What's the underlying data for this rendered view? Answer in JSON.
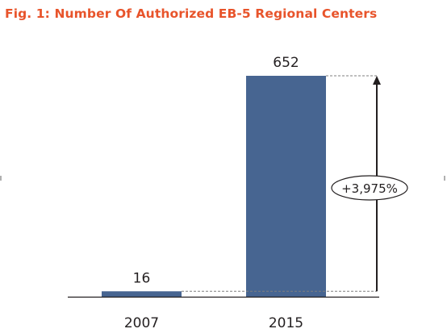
{
  "colors": {
    "title": "#E8542B",
    "bar": "#476591",
    "text": "#231F20",
    "axis": "#231F20",
    "guide": "#7F7F7F"
  },
  "chart_data": {
    "type": "bar",
    "title": "Fig. 1: Number Of Authorized EB-5 Regional Centers",
    "categories": [
      "2007",
      "2015"
    ],
    "values": [
      16,
      652
    ],
    "data_labels": [
      "16",
      "652"
    ],
    "ylim": [
      0,
      652
    ],
    "grid": false,
    "legend": "none",
    "annotation": {
      "text": "+3,975%",
      "from_category": "2007",
      "to_category": "2015"
    }
  }
}
